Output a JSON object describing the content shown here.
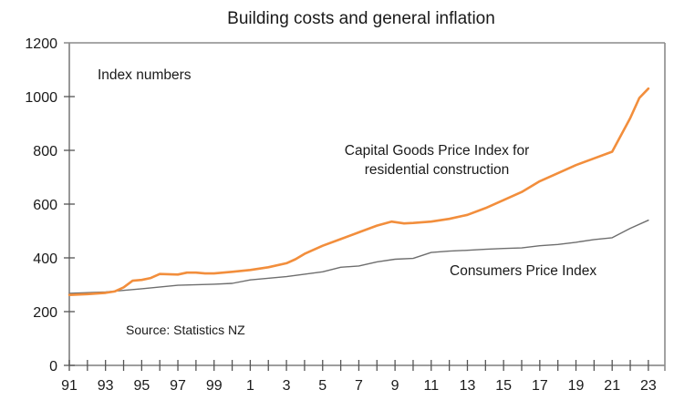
{
  "chart_data": {
    "type": "line",
    "title": "Building costs and general inflation",
    "xlabel": "",
    "ylabel": "Index numbers",
    "ylim": [
      0,
      1200
    ],
    "xlim": [
      1991,
      2023.9
    ],
    "grid": false,
    "yticks": [
      0,
      200,
      400,
      600,
      800,
      1000,
      1200
    ],
    "xtick_values": [
      1991,
      1993,
      1995,
      1997,
      1999,
      2001,
      2003,
      2005,
      2007,
      2009,
      2011,
      2013,
      2015,
      2017,
      2019,
      2021,
      2023
    ],
    "xtick_labels": [
      "91",
      "93",
      "95",
      "97",
      "99",
      "1",
      "3",
      "5",
      "7",
      "9",
      "11",
      "13",
      "15",
      "17",
      "19",
      "21",
      "23"
    ],
    "minor_xticks": [
      1992,
      1994,
      1996,
      1998,
      2000,
      2002,
      2004,
      2006,
      2008,
      2010,
      2012,
      2014,
      2016,
      2018,
      2020,
      2022
    ],
    "annotations": {
      "units": "Index numbers",
      "source": "Source: Statistics NZ",
      "cgpi_label_line1": "Capital Goods Price Index for",
      "cgpi_label_line2": "residential construction",
      "cpi_label": "Consumers Price Index"
    },
    "series": [
      {
        "name": "Capital Goods Price Index for residential construction",
        "color": "#f28e3c",
        "x": [
          1991,
          1992,
          1993,
          1993.5,
          1994,
          1994.5,
          1995,
          1995.5,
          1996,
          1997,
          1997.5,
          1998,
          1998.5,
          1999,
          2000,
          2001,
          2002,
          2003,
          2003.5,
          2004,
          2005,
          2006,
          2007,
          2008,
          2008.8,
          2009.5,
          2010,
          2011,
          2012,
          2013,
          2014,
          2015,
          2016,
          2017,
          2018,
          2019,
          2020,
          2021,
          2022,
          2022.5,
          2023
        ],
        "values": [
          262,
          265,
          270,
          275,
          290,
          315,
          318,
          325,
          340,
          338,
          345,
          345,
          342,
          342,
          348,
          355,
          365,
          380,
          395,
          415,
          445,
          470,
          495,
          520,
          535,
          528,
          530,
          535,
          545,
          560,
          585,
          615,
          645,
          685,
          715,
          745,
          770,
          795,
          920,
          995,
          1030
        ]
      },
      {
        "name": "Consumers Price Index",
        "color": "#6e6e6e",
        "x": [
          1991,
          1993,
          1995,
          1997,
          1999,
          2000,
          2001,
          2003,
          2005,
          2006,
          2007,
          2008,
          2009,
          2010,
          2011,
          2012,
          2013,
          2014,
          2015,
          2016,
          2017,
          2018,
          2019,
          2020,
          2021,
          2022,
          2023
        ],
        "values": [
          268,
          273,
          285,
          298,
          302,
          305,
          318,
          330,
          348,
          365,
          370,
          385,
          395,
          398,
          420,
          425,
          428,
          432,
          435,
          437,
          445,
          450,
          458,
          468,
          475,
          510,
          540
        ]
      }
    ]
  }
}
